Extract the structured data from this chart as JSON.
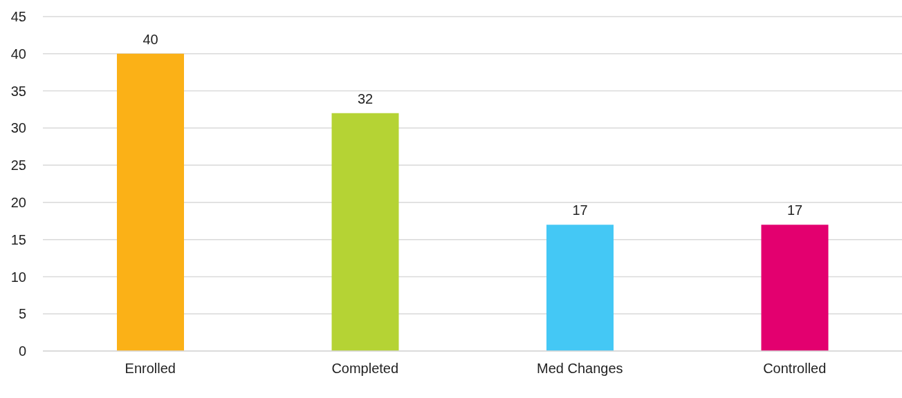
{
  "chart_data": {
    "type": "bar",
    "categories": [
      "Enrolled",
      "Completed",
      "Med Changes",
      "Controlled"
    ],
    "values": [
      40,
      32,
      17,
      17
    ],
    "colors": [
      "#fbb117",
      "#b5d334",
      "#44c8f5",
      "#e3006f"
    ],
    "ylim": [
      0,
      45
    ],
    "yticks": [
      0,
      5,
      10,
      15,
      20,
      25,
      30,
      35,
      40,
      45
    ],
    "grid": "y",
    "data_labels": true
  }
}
